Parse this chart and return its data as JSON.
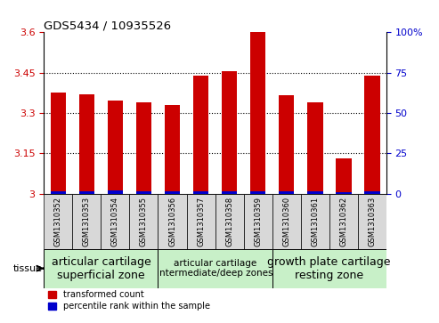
{
  "title": "GDS5434 / 10935526",
  "samples": [
    "GSM1310352",
    "GSM1310353",
    "GSM1310354",
    "GSM1310355",
    "GSM1310356",
    "GSM1310357",
    "GSM1310358",
    "GSM1310359",
    "GSM1310360",
    "GSM1310361",
    "GSM1310362",
    "GSM1310363"
  ],
  "red_values": [
    3.375,
    3.37,
    3.345,
    3.34,
    3.33,
    3.44,
    3.455,
    3.6,
    3.365,
    3.34,
    3.13,
    3.44
  ],
  "blue_values": [
    1.5,
    1.5,
    2.0,
    1.5,
    1.5,
    1.5,
    1.5,
    1.5,
    1.5,
    1.5,
    1.0,
    1.5
  ],
  "ylim_left": [
    3.0,
    3.6
  ],
  "ylim_right": [
    0,
    100
  ],
  "yticks_left": [
    3.0,
    3.15,
    3.3,
    3.45,
    3.6
  ],
  "yticks_right": [
    0,
    25,
    50,
    75,
    100
  ],
  "ytick_labels_left": [
    "3",
    "3.15",
    "3.3",
    "3.45",
    "3.6"
  ],
  "ytick_labels_right": [
    "0",
    "25",
    "50",
    "75",
    "100%"
  ],
  "groups": [
    {
      "label": "articular cartilage\nsuperficial zone",
      "start": 0,
      "end": 3,
      "color": "#c8f0c8"
    },
    {
      "label": "articular cartilage\nintermediate/deep zones",
      "start": 4,
      "end": 7,
      "color": "#c8f0c8"
    },
    {
      "label": "growth plate cartilage\nresting zone",
      "start": 8,
      "end": 11,
      "color": "#c8f0c8"
    }
  ],
  "tissue_label": "tissue",
  "legend_red": "transformed count",
  "legend_blue": "percentile rank within the sample",
  "bar_color_red": "#cc0000",
  "bar_color_blue": "#0000cc",
  "bar_width": 0.55,
  "bg_color": "#ffffff",
  "left_tick_color": "#cc0000",
  "right_tick_color": "#0000cc",
  "dotted_lines": [
    3.15,
    3.3,
    3.45
  ],
  "gray_box_color": "#d8d8d8",
  "group_font_sizes": [
    9,
    7.5,
    9
  ]
}
